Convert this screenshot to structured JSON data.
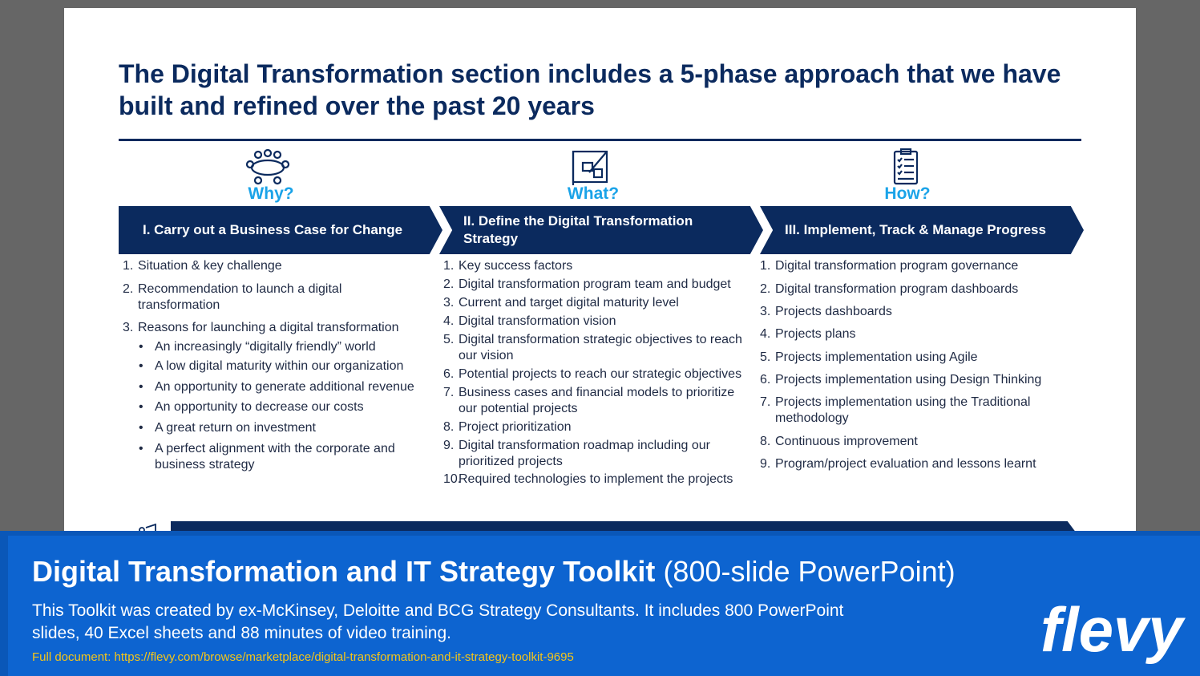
{
  "slide": {
    "title": "The Digital Transformation section includes a 5-phase approach that we have built and refined over the past 20 years",
    "columns": [
      {
        "icon": "meeting-table-icon",
        "question": "Why?",
        "phase": "I. Carry out a Business Case for Change",
        "items": [
          {
            "num": "1.",
            "text": "Situation & key challenge"
          },
          {
            "num": "2.",
            "text": "Recommendation to launch a digital transformation"
          },
          {
            "num": "3.",
            "text": "Reasons for launching a digital transformation"
          }
        ],
        "bullets": [
          "An increasingly “digitally friendly” world",
          "A low digital maturity within our organization",
          "An opportunity to generate additional revenue",
          "An opportunity to decrease our costs",
          "A great return on investment",
          "A perfect alignment with the corporate and business strategy"
        ]
      },
      {
        "icon": "blueprint-icon",
        "question": "What?",
        "phase": "II. Define the Digital Transformation Strategy",
        "items": [
          {
            "num": "1.",
            "text": "Key success factors"
          },
          {
            "num": "2.",
            "text": "Digital transformation program team and budget"
          },
          {
            "num": "3.",
            "text": "Current and target digital maturity level"
          },
          {
            "num": "4.",
            "text": "Digital transformation vision"
          },
          {
            "num": "5.",
            "text": "Digital transformation strategic objectives to reach our vision"
          },
          {
            "num": "6.",
            "text": "Potential projects to reach our strategic objectives"
          },
          {
            "num": "7.",
            "text": "Business cases and financial models to prioritize our potential projects"
          },
          {
            "num": "8.",
            "text": "Project prioritization"
          },
          {
            "num": "9.",
            "text": "Digital transformation roadmap including our prioritized projects"
          },
          {
            "num": "10.",
            "text": "Required technologies to implement the projects"
          }
        ]
      },
      {
        "icon": "clipboard-checklist-icon",
        "question": "How?",
        "phase": "III. Implement, Track & Manage Progress",
        "items": [
          {
            "num": "1.",
            "text": "Digital transformation program governance"
          },
          {
            "num": "2.",
            "text": "Digital transformation program dashboards"
          },
          {
            "num": "3.",
            "text": "Projects dashboards"
          },
          {
            "num": "4.",
            "text": "Projects plans"
          },
          {
            "num": "5.",
            "text": "Projects implementation using Agile"
          },
          {
            "num": "6.",
            "text": "Projects implementation using Design Thinking"
          },
          {
            "num": "7.",
            "text": "Projects implementation using the Traditional methodology"
          },
          {
            "num": "8.",
            "text": "Continuous improvement"
          },
          {
            "num": "9.",
            "text": "Program/project evaluation and lessons learnt"
          }
        ]
      }
    ]
  },
  "banner": {
    "title_bold": "Digital Transformation and IT Strategy Toolkit",
    "title_light": "(800-slide PowerPoint)",
    "description": "This Toolkit was created by ex-McKinsey, Deloitte and BCG Strategy Consultants. It includes 800 PowerPoint slides, 40 Excel sheets and 88 minutes of video training.",
    "link": "Full document: https://flevy.com/browse/marketplace/digital-transformation-and-it-strategy-toolkit-9695",
    "logo_text": "flevy"
  },
  "colors": {
    "navy": "#0b2a5e",
    "accent_blue": "#1aa3e8",
    "banner_blue": "#0d64d0",
    "link_yellow": "#f5c518"
  }
}
